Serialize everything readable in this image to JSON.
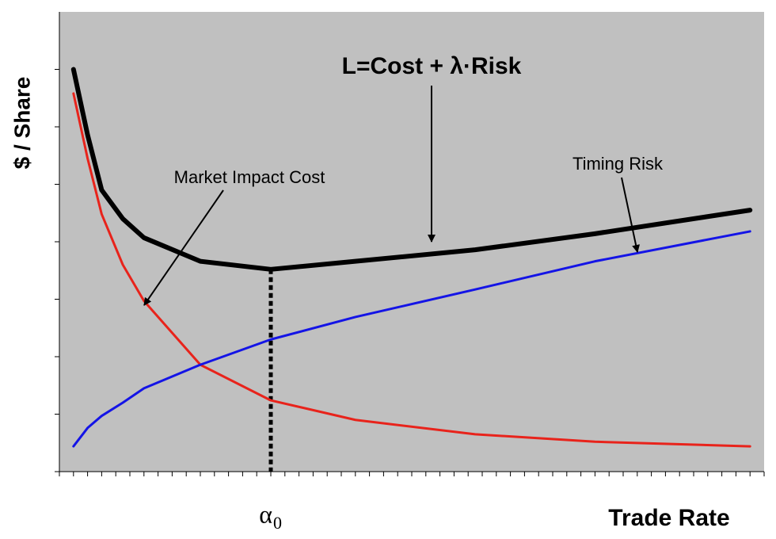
{
  "chart_data": {
    "type": "line",
    "title": "L=Cost + λ·Risk",
    "x_label": "Trade Rate",
    "y_label": "$ / Share",
    "annotations": [
      "Market Impact Cost",
      "Timing Risk"
    ],
    "x_marker": {
      "value": 30,
      "label": "α",
      "subscript": "0"
    },
    "x": [
      2,
      4,
      6,
      9,
      12,
      20,
      30,
      42,
      59,
      76,
      98
    ],
    "series": [
      {
        "name": "Market Impact Cost",
        "color": "#e8231b",
        "values": [
          6.58,
          5.45,
          4.48,
          3.6,
          2.97,
          1.86,
          1.24,
          0.9,
          0.65,
          0.52,
          0.44
        ]
      },
      {
        "name": "Timing Risk",
        "color": "#1414e6",
        "values": [
          0.44,
          0.76,
          0.97,
          1.2,
          1.45,
          1.86,
          2.3,
          2.69,
          3.17,
          3.66,
          4.18
        ]
      },
      {
        "name": "L",
        "color": "#000000",
        "values": [
          7.0,
          5.86,
          4.9,
          4.4,
          4.07,
          3.66,
          3.52,
          3.66,
          3.86,
          4.14,
          4.55
        ]
      }
    ],
    "xlim": [
      0,
      100
    ],
    "ylim": [
      0,
      8
    ],
    "yticks": [
      0,
      1,
      2,
      3,
      4,
      5,
      6,
      7
    ],
    "xticks": [
      0,
      2,
      4,
      6,
      8,
      10,
      12,
      14,
      16,
      18,
      20,
      22,
      24,
      26,
      28,
      30,
      32,
      34,
      36,
      38,
      40,
      42,
      44,
      46,
      48,
      50,
      52,
      54,
      56,
      58,
      60,
      62,
      64,
      66,
      68,
      70,
      72,
      74,
      76,
      78,
      80,
      82,
      84,
      86,
      88,
      90,
      92,
      94,
      96,
      98,
      100
    ],
    "background": "#c0c0c0"
  }
}
